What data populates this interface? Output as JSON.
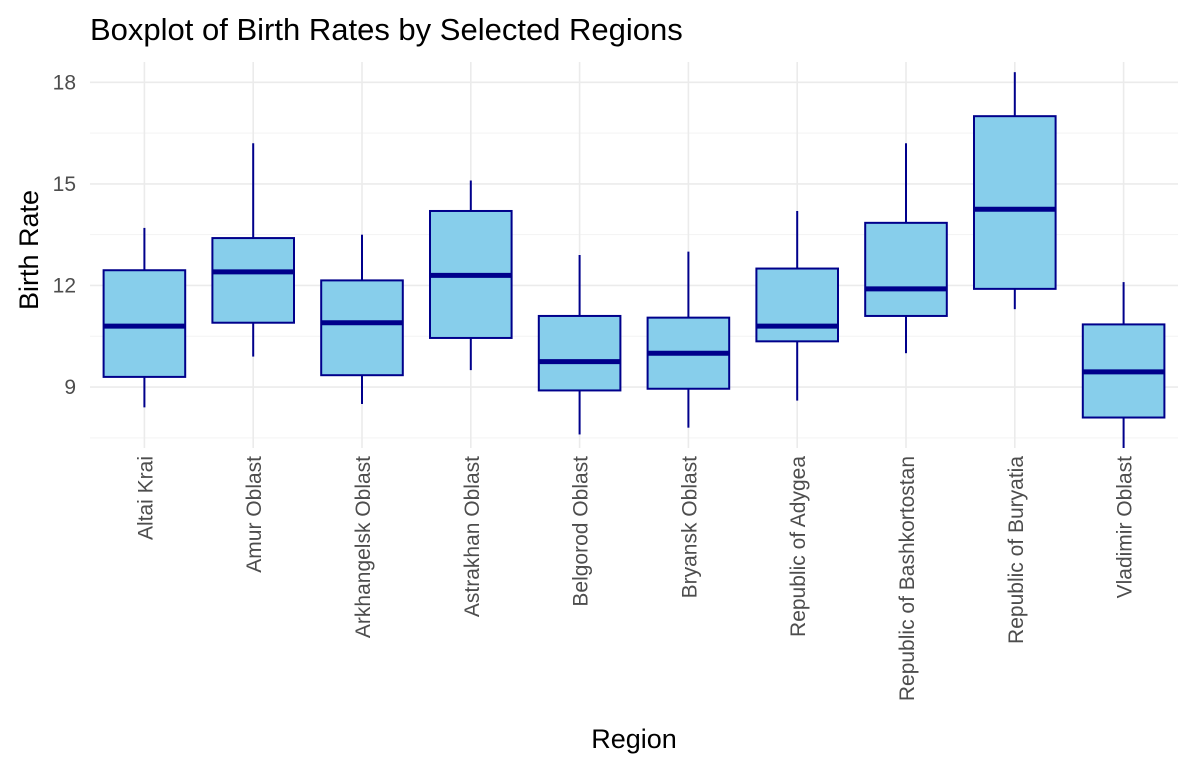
{
  "chart_data": {
    "type": "boxplot",
    "title": "Boxplot of Birth Rates by Selected Regions",
    "xlabel": "Region",
    "ylabel": "Birth Rate",
    "ylim": [
      7.2,
      18.6
    ],
    "yticks": [
      9,
      12,
      15,
      18
    ],
    "yticks_labels": [
      "9",
      "12",
      "15",
      "18"
    ],
    "grid": true,
    "colors": {
      "box_fill": "#87CEEB",
      "box_border": "#00008B",
      "median": "#00008B"
    },
    "categories": [
      "Altai Krai",
      "Amur Oblast",
      "Arkhangelsk Oblast",
      "Astrakhan Oblast",
      "Belgorod Oblast",
      "Bryansk Oblast",
      "Republic of Adygea",
      "Republic of Bashkortostan",
      "Republic of Buryatia",
      "Vladimir Oblast"
    ],
    "boxes": [
      {
        "min": 8.4,
        "q1": 9.3,
        "median": 10.8,
        "q3": 12.45,
        "max": 13.7
      },
      {
        "min": 9.9,
        "q1": 10.9,
        "median": 12.4,
        "q3": 13.4,
        "max": 16.2
      },
      {
        "min": 8.5,
        "q1": 9.35,
        "median": 10.9,
        "q3": 12.15,
        "max": 13.5
      },
      {
        "min": 9.5,
        "q1": 10.45,
        "median": 12.3,
        "q3": 14.2,
        "max": 15.1
      },
      {
        "min": 7.6,
        "q1": 8.9,
        "median": 9.75,
        "q3": 11.1,
        "max": 12.9
      },
      {
        "min": 7.8,
        "q1": 8.95,
        "median": 10.0,
        "q3": 11.05,
        "max": 13.0
      },
      {
        "min": 8.6,
        "q1": 10.35,
        "median": 10.8,
        "q3": 12.5,
        "max": 14.2
      },
      {
        "min": 10.0,
        "q1": 11.1,
        "median": 11.9,
        "q3": 13.85,
        "max": 16.2
      },
      {
        "min": 11.3,
        "q1": 11.9,
        "median": 14.25,
        "q3": 17.0,
        "max": 18.3
      },
      {
        "min": 7.2,
        "q1": 8.1,
        "median": 9.45,
        "q3": 10.85,
        "max": 12.1
      }
    ]
  }
}
